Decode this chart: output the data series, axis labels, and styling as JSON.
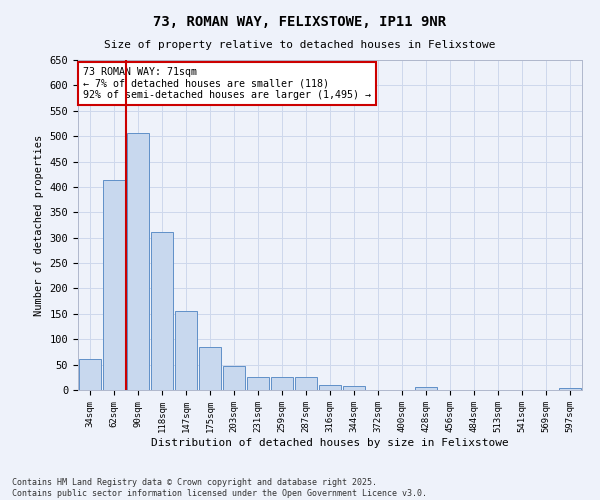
{
  "title1": "73, ROMAN WAY, FELIXSTOWE, IP11 9NR",
  "title2": "Size of property relative to detached houses in Felixstowe",
  "xlabel": "Distribution of detached houses by size in Felixstowe",
  "ylabel": "Number of detached properties",
  "categories": [
    "34sqm",
    "62sqm",
    "90sqm",
    "118sqm",
    "147sqm",
    "175sqm",
    "203sqm",
    "231sqm",
    "259sqm",
    "287sqm",
    "316sqm",
    "344sqm",
    "372sqm",
    "400sqm",
    "428sqm",
    "456sqm",
    "484sqm",
    "513sqm",
    "541sqm",
    "569sqm",
    "597sqm"
  ],
  "values": [
    62,
    413,
    506,
    312,
    155,
    84,
    47,
    25,
    26,
    26,
    9,
    7,
    0,
    0,
    5,
    0,
    0,
    0,
    0,
    0,
    4
  ],
  "bar_color": "#c8d8ee",
  "bar_edge_color": "#6090c8",
  "vline_x": 1.5,
  "vline_color": "#cc0000",
  "annotation_text": "73 ROMAN WAY: 71sqm\n← 7% of detached houses are smaller (118)\n92% of semi-detached houses are larger (1,495) →",
  "annotation_box_color": "#cc0000",
  "ylim": [
    0,
    650
  ],
  "yticks": [
    0,
    50,
    100,
    150,
    200,
    250,
    300,
    350,
    400,
    450,
    500,
    550,
    600,
    650
  ],
  "footer_line1": "Contains HM Land Registry data © Crown copyright and database right 2025.",
  "footer_line2": "Contains public sector information licensed under the Open Government Licence v3.0.",
  "grid_color": "#cdd8ec",
  "bg_color": "#eef2fa"
}
